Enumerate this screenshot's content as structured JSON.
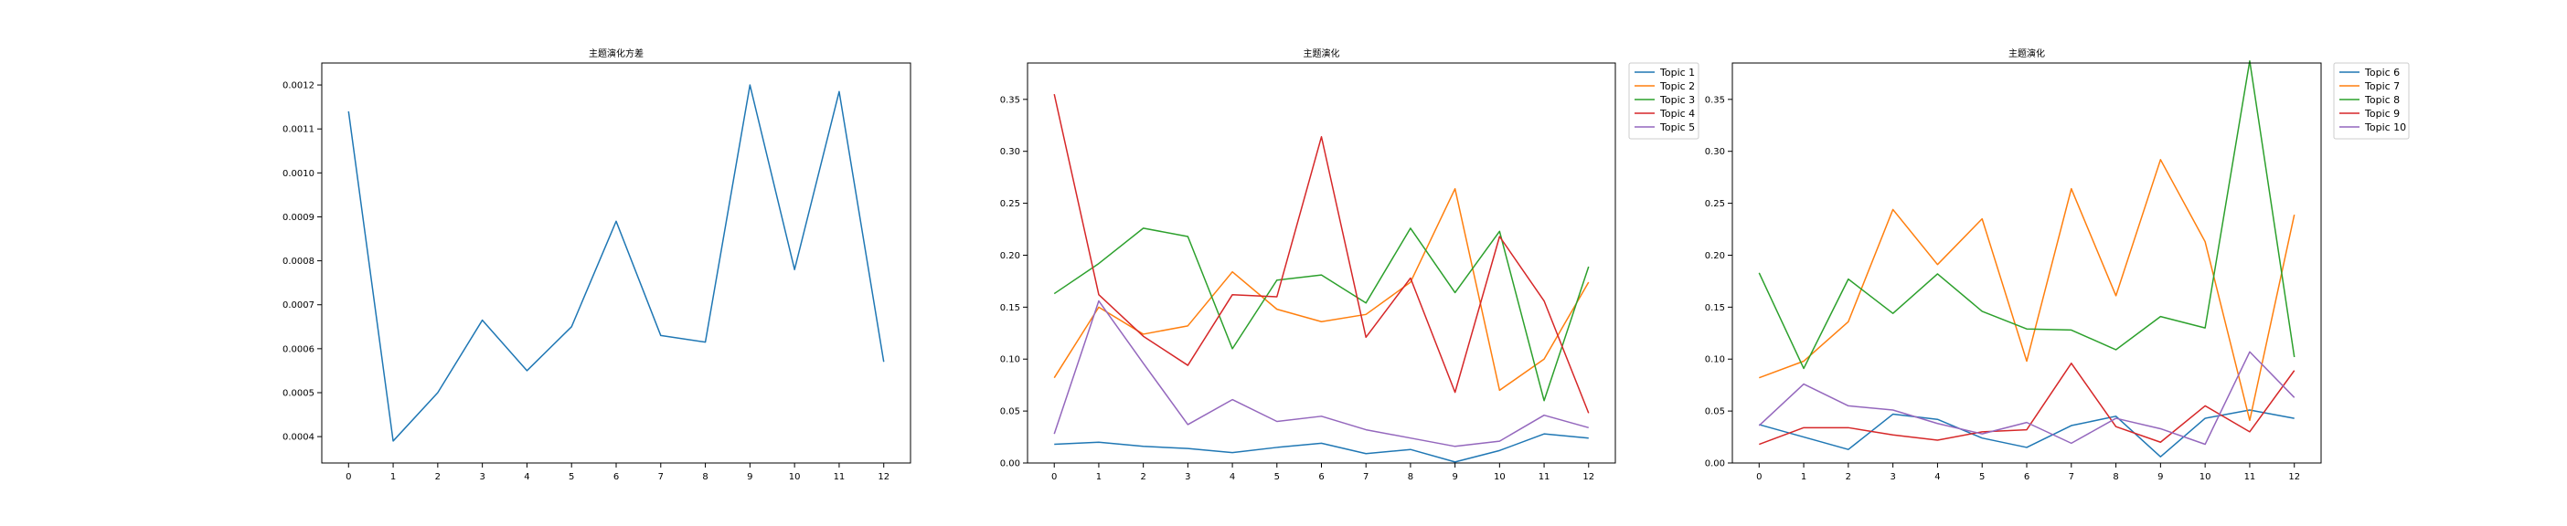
{
  "chart_data": [
    {
      "type": "line",
      "title": "主题演化方差",
      "xlabel": "",
      "ylabel": "",
      "x": [
        0,
        1,
        2,
        3,
        4,
        5,
        6,
        7,
        8,
        9,
        10,
        11,
        12
      ],
      "xlim": [
        -0.6,
        12.6
      ],
      "ylim": [
        0.00034,
        0.00125
      ],
      "yticks": [
        0.0004,
        0.0005,
        0.0006,
        0.0007,
        0.0008,
        0.0009,
        0.001,
        0.0011,
        0.0012
      ],
      "ytick_labels": [
        "0.0004",
        "0.0005",
        "0.0006",
        "0.0007",
        "0.0008",
        "0.0009",
        "0.0010",
        "0.0011",
        "0.0012"
      ],
      "grid": false,
      "legend": "none",
      "series": [
        {
          "color": "#1f77b4",
          "values": [
            0.00114,
            0.00039,
            0.0005,
            0.000665,
            0.00055,
            0.00065,
            0.00089,
            0.00063,
            0.000615,
            0.0012,
            0.00078,
            0.001185,
            0.00057
          ]
        }
      ]
    },
    {
      "type": "line",
      "title": "主题演化",
      "xlabel": "",
      "ylabel": "",
      "x": [
        0,
        1,
        2,
        3,
        4,
        5,
        6,
        7,
        8,
        9,
        10,
        11,
        12
      ],
      "xlim": [
        -0.6,
        12.6
      ],
      "ylim": [
        0,
        0.385
      ],
      "yticks": [
        0,
        0.05,
        0.1,
        0.15,
        0.2,
        0.25,
        0.3,
        0.35
      ],
      "ytick_labels": [
        "0.00",
        "0.05",
        "0.10",
        "0.15",
        "0.20",
        "0.25",
        "0.30",
        "0.35"
      ],
      "grid": false,
      "legend": "outside upper right",
      "series": [
        {
          "name": "Topic 1",
          "color": "#1f77b4",
          "values": [
            0.018,
            0.02,
            0.016,
            0.014,
            0.01,
            0.015,
            0.019,
            0.009,
            0.013,
            0.001,
            0.012,
            0.028,
            0.024
          ]
        },
        {
          "name": "Topic 2",
          "color": "#ff7f0e",
          "values": [
            0.082,
            0.15,
            0.124,
            0.132,
            0.184,
            0.148,
            0.136,
            0.143,
            0.174,
            0.264,
            0.07,
            0.1,
            0.174
          ]
        },
        {
          "name": "Topic 3",
          "color": "#2ca02c",
          "values": [
            0.163,
            0.192,
            0.226,
            0.218,
            0.11,
            0.176,
            0.181,
            0.154,
            0.226,
            0.164,
            0.223,
            0.06,
            0.189
          ]
        },
        {
          "name": "Topic 4",
          "color": "#d62728",
          "values": [
            0.355,
            0.162,
            0.122,
            0.094,
            0.162,
            0.16,
            0.314,
            0.121,
            0.178,
            0.068,
            0.218,
            0.156,
            0.048
          ]
        },
        {
          "name": "Topic 5",
          "color": "#9467bd",
          "values": [
            0.028,
            0.156,
            0.096,
            0.037,
            0.061,
            0.04,
            0.045,
            0.032,
            0.024,
            0.016,
            0.021,
            0.046,
            0.034
          ]
        }
      ]
    },
    {
      "type": "line",
      "title": "主题演化",
      "xlabel": "",
      "ylabel": "",
      "x": [
        0,
        1,
        2,
        3,
        4,
        5,
        6,
        7,
        8,
        9,
        10,
        11,
        12
      ],
      "xlim": [
        -0.6,
        12.6
      ],
      "ylim": [
        0,
        0.385
      ],
      "yticks": [
        0,
        0.05,
        0.1,
        0.15,
        0.2,
        0.25,
        0.3,
        0.35
      ],
      "ytick_labels": [
        "0.00",
        "0.05",
        "0.10",
        "0.15",
        "0.20",
        "0.25",
        "0.30",
        "0.35"
      ],
      "grid": false,
      "legend": "outside upper right",
      "series": [
        {
          "name": "Topic 6",
          "color": "#1f77b4",
          "values": [
            0.037,
            0.025,
            0.013,
            0.047,
            0.042,
            0.024,
            0.015,
            0.036,
            0.045,
            0.006,
            0.043,
            0.051,
            0.043
          ]
        },
        {
          "name": "Topic 7",
          "color": "#ff7f0e",
          "values": [
            0.082,
            0.098,
            0.136,
            0.244,
            0.191,
            0.235,
            0.098,
            0.264,
            0.161,
            0.292,
            0.213,
            0.041,
            0.239
          ]
        },
        {
          "name": "Topic 8",
          "color": "#2ca02c",
          "values": [
            0.183,
            0.091,
            0.177,
            0.144,
            0.182,
            0.146,
            0.129,
            0.128,
            0.109,
            0.141,
            0.13,
            0.387,
            0.102
          ]
        },
        {
          "name": "Topic 9",
          "color": "#d62728",
          "values": [
            0.018,
            0.034,
            0.034,
            0.027,
            0.022,
            0.03,
            0.032,
            0.096,
            0.035,
            0.02,
            0.055,
            0.03,
            0.089
          ]
        },
        {
          "name": "Topic 10",
          "color": "#9467bd",
          "values": [
            0.036,
            0.076,
            0.055,
            0.051,
            0.038,
            0.028,
            0.039,
            0.019,
            0.043,
            0.033,
            0.018,
            0.107,
            0.063
          ]
        }
      ]
    }
  ]
}
